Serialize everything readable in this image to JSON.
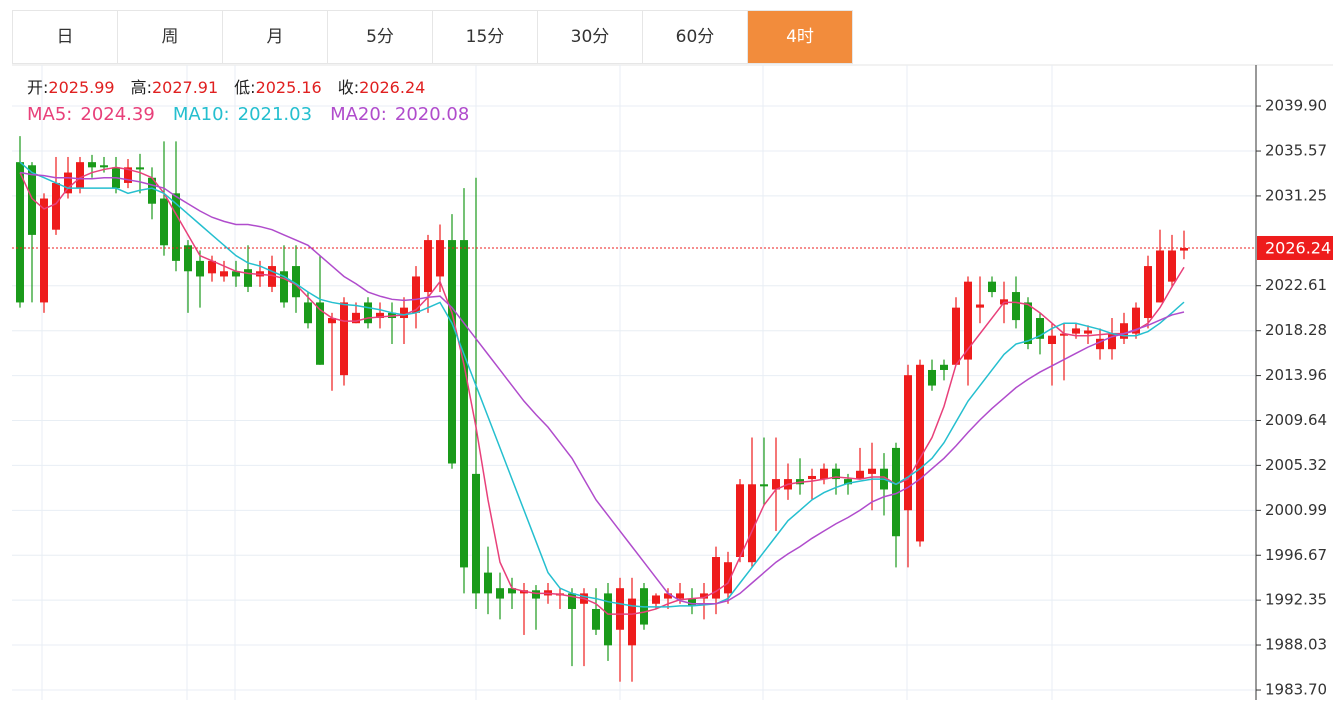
{
  "tabs": {
    "items": [
      "日",
      "周",
      "月",
      "5分",
      "15分",
      "30分",
      "60分",
      "4时"
    ],
    "active": 7
  },
  "header": {
    "open_label": "开:",
    "high_label": "高:",
    "low_label": "低:",
    "close_label": "收:"
  },
  "chart_data": {
    "type": "candlestick",
    "up_color": "#ee1c1c",
    "down_color": "#1a9a1a",
    "ylim": [
      1982.74,
      2043.85
    ],
    "yticks": [
      {
        "value": 2039.9,
        "label": "2039.90"
      },
      2035.57,
      2031.25,
      2022.61,
      2018.28,
      2013.96,
      2009.64,
      2005.32,
      2000.99,
      1996.67,
      1992.35,
      1988.03,
      {
        "value": 1983.7,
        "label": "1983.70"
      }
    ],
    "open": [
      2034.5,
      2034.2,
      2021.0,
      2028.0,
      2031.5,
      2032,
      2034.5,
      2034.2,
      2034,
      2032.5,
      2034,
      2033,
      2031,
      2031.5,
      2026.5,
      2025,
      2023.8,
      2023.5,
      2024,
      2024.2,
      2023.5,
      2022.5,
      2024,
      2024.5,
      2021,
      2021,
      2019,
      2014,
      2019,
      2021,
      2019.5,
      2020,
      2019.5,
      2020,
      2022,
      2023.5,
      2027,
      2027,
      2004.5,
      1995,
      1993.5,
      1993.5,
      1993,
      1993.3,
      1992.8,
      1992.8,
      1993,
      1992,
      1991.5,
      1993,
      1989.5,
      1988,
      1993.5,
      1992,
      1992.5,
      1992.5,
      1992.5,
      1992.5,
      1992.5,
      1993,
      1996.5,
      1996,
      2003.5,
      2003,
      2003,
      2004,
      2004,
      2004,
      2005,
      2004,
      2004,
      2004.5,
      2005,
      2007,
      2001,
      1998,
      2014.5,
      2015,
      2015,
      2015.5,
      2020.5,
      2023,
      2020.8,
      2022,
      2021,
      2019.5,
      2017,
      2017.8,
      2018,
      2018,
      2016.5,
      2016.5,
      2017.5,
      2018,
      2019.5,
      2021,
      2023,
      2025.99
    ],
    "high": [
      2037.0,
      2034.5,
      2031.5,
      2035,
      2035,
      2035,
      2035.2,
      2035,
      2035,
      2034.8,
      2035.3,
      2034,
      2036.5,
      2036.5,
      2027,
      2026,
      2025.5,
      2025,
      2025,
      2026.5,
      2025,
      2025.5,
      2026.5,
      2026.5,
      2022,
      2025.5,
      2020,
      2021.5,
      2021,
      2021.5,
      2021,
      2021,
      2021.5,
      2024.5,
      2027.5,
      2028.5,
      2029.5,
      2032,
      2033,
      1997.5,
      1995,
      1994.5,
      1994,
      1993.8,
      1994,
      1993.5,
      1993.5,
      1993.5,
      1993.5,
      1994,
      1994.5,
      1994.5,
      1994,
      1993,
      1993.5,
      1994,
      1993.5,
      1994,
      1997.5,
      1997,
      2004,
      2008,
      2008,
      2008,
      2005.5,
      2006,
      2005,
      2005.5,
      2005.5,
      2004.5,
      2007,
      2007.5,
      2006.5,
      2007.5,
      2015,
      2015.5,
      2015.5,
      2015.5,
      2021.5,
      2023.5,
      2023.5,
      2023.5,
      2023,
      2023.5,
      2021.5,
      2020,
      2019,
      2019,
      2019,
      2018.8,
      2018.5,
      2019.5,
      2020,
      2021,
      2025.5,
      2028,
      2027.5,
      2027.91
    ],
    "low": [
      2020.5,
      2021,
      2020,
      2027.5,
      2031,
      2031.5,
      2033,
      2033.5,
      2031.5,
      2032,
      2031.5,
      2029,
      2025.5,
      2024,
      2020,
      2020.5,
      2023,
      2023,
      2022.5,
      2022,
      2022.5,
      2022,
      2020.5,
      2020,
      2018.5,
      2015,
      2012.5,
      2013,
      2019,
      2018.5,
      2018.5,
      2017,
      2017,
      2018.5,
      2020,
      2022,
      2005,
      1993,
      1991.5,
      1991,
      1990.5,
      1991.5,
      1989,
      1989.5,
      1992,
      1991.5,
      1986,
      1986,
      1989,
      1986.5,
      1984.5,
      1984.5,
      1989.5,
      1991.5,
      1991.5,
      1992,
      1991,
      1990.5,
      1991,
      1992,
      1996,
      1995.5,
      2001.5,
      1999,
      2002,
      2002.5,
      2002,
      2003.5,
      2002.5,
      2002.5,
      2004,
      2001,
      2000.5,
      1995.5,
      1995.5,
      1997.5,
      2012.5,
      2013.5,
      2015,
      2013,
      2019,
      2021.5,
      2019,
      2018.5,
      2016.5,
      2016,
      2013,
      2013.5,
      2017.5,
      2017,
      2015.5,
      2015.5,
      2017,
      2017.5,
      2018.5,
      2021,
      2022.5,
      2025.16
    ],
    "close": [
      2021.0,
      2027.5,
      2031.0,
      2032.5,
      2033.5,
      2034.5,
      2034,
      2034,
      2032,
      2034,
      2033.8,
      2030.5,
      2026.5,
      2025.0,
      2024.0,
      2023.5,
      2025.0,
      2024,
      2023.5,
      2022.5,
      2024,
      2024.5,
      2021,
      2021.5,
      2019,
      2015,
      2019.5,
      2021,
      2020,
      2019,
      2020,
      2019.5,
      2020.5,
      2023.5,
      2027,
      2027,
      2005.5,
      1995.5,
      1993,
      1993,
      1992.5,
      1993,
      1993.3,
      1992.5,
      1993.3,
      1993,
      1991.5,
      1993,
      1989.5,
      1988,
      1993.5,
      1992.5,
      1990,
      1992.8,
      1993,
      1993,
      1991.8,
      1993,
      1996.5,
      1996,
      2003.5,
      2003.5,
      2003.3,
      2004,
      2004,
      2003.5,
      2004.3,
      2005,
      2004,
      2003.5,
      2004.8,
      2005,
      2003,
      1998.5,
      2014,
      2015,
      2013,
      2014.5,
      2020.5,
      2023,
      2020.8,
      2022,
      2021.3,
      2019.3,
      2017,
      2017.5,
      2017.8,
      2018,
      2018.5,
      2018.3,
      2017.5,
      2018,
      2019,
      2020.5,
      2024.5,
      2026,
      2026,
      2026.24
    ],
    "series": [
      {
        "name": "MA5:",
        "color": "#e8407a",
        "values": [
          2033.5,
          2031,
          2030,
          2030.5,
          2032,
          2033,
          2033.5,
          2033.8,
          2034,
          2033.8,
          2033.5,
          2033,
          2031.5,
          2029.5,
          2027.5,
          2025.5,
          2025,
          2024.5,
          2024,
          2023.8,
          2023.7,
          2023.6,
          2023.3,
          2022.7,
          2021.5,
          2020.3,
          2019.5,
          2019.2,
          2019.2,
          2019.5,
          2019.6,
          2019.7,
          2019.8,
          2020.3,
          2021.5,
          2023,
          2020,
          2015,
          2009,
          2002,
          1996,
          1993.5,
          1993.2,
          1993,
          1993,
          1992.9,
          1992.7,
          1992.5,
          1992,
          1991,
          1991,
          1991,
          1991.2,
          1991.5,
          1992,
          1992.4,
          1992.5,
          1992.6,
          1993.2,
          1994,
          1996.5,
          1999,
          2001.5,
          2003,
          2003.5,
          2003.7,
          2003.8,
          2004,
          2004.2,
          2004.1,
          2004,
          2004.2,
          2004.2,
          2003.5,
          2004,
          2006,
          2008,
          2011,
          2015,
          2016.5,
          2018,
          2019.5,
          2021,
          2021,
          2020.8,
          2020,
          2019,
          2018,
          2017.8,
          2017.8,
          2017.9,
          2018,
          2018,
          2018.3,
          2019,
          2020.5,
          2022.5,
          2024.39
        ]
      },
      {
        "name": "MA10:",
        "color": "#25bfcf",
        "values": [
          2034.5,
          2033.5,
          2033,
          2032.5,
          2032,
          2032,
          2032,
          2032,
          2032,
          2031.5,
          2031.8,
          2032,
          2031.5,
          2030.5,
          2029.5,
          2028.5,
          2027.5,
          2026.5,
          2025.5,
          2024.8,
          2024.5,
          2024,
          2023.5,
          2022.8,
          2022,
          2021.3,
          2021,
          2020.8,
          2020.7,
          2020.5,
          2020.3,
          2020,
          2019.8,
          2020,
          2020.5,
          2021,
          2019,
          2016,
          2013,
          2010,
          2007,
          2004,
          2001,
          1998,
          1995,
          1993.5,
          1993,
          1992.7,
          1992.5,
          1992.2,
          1992,
          1991.8,
          1991.7,
          1991.7,
          1991.7,
          1991.8,
          1991.8,
          1991.9,
          1992,
          1992.5,
          1994,
          1995.5,
          1997,
          1998.5,
          2000,
          2001,
          2002,
          2002.7,
          2003.2,
          2003.6,
          2003.8,
          2004,
          2004,
          2003.5,
          2004.2,
          2005,
          2006,
          2007.5,
          2009.5,
          2011.5,
          2013,
          2014.5,
          2016,
          2017,
          2017.3,
          2017.8,
          2018.5,
          2019,
          2019,
          2018.7,
          2018.4,
          2018,
          2017.8,
          2017.8,
          2018.2,
          2019,
          2020,
          2021.03
        ]
      },
      {
        "name": "MA20:",
        "color": "#b04ccc",
        "values": [
          2033.5,
          2033.3,
          2033.2,
          2033,
          2033,
          2032.9,
          2032.9,
          2033,
          2033,
          2032.8,
          2032.6,
          2032.3,
          2032,
          2031.2,
          2030.5,
          2029.8,
          2029.2,
          2028.8,
          2028.5,
          2028.5,
          2028.3,
          2028,
          2027.5,
          2027,
          2026.5,
          2025.5,
          2024.5,
          2023.5,
          2022.8,
          2022,
          2021.6,
          2021.3,
          2021.2,
          2021.3,
          2021.5,
          2021.6,
          2020.5,
          2019,
          2017.5,
          2016,
          2014.5,
          2013,
          2011.5,
          2010.2,
          2009,
          2007.5,
          2006,
          2004,
          2002,
          2000.5,
          1999,
          1997.5,
          1996,
          1994.5,
          1993,
          1992.3,
          1992,
          1992,
          1992,
          1992.3,
          1993,
          1994,
          1995,
          1996,
          1996.8,
          1997.5,
          1998.3,
          1999,
          1999.7,
          2000.3,
          2001,
          2001.8,
          2002.3,
          2002.6,
          2003.2,
          2004,
          2005,
          2006,
          2007.2,
          2008.5,
          2009.7,
          2010.8,
          2011.8,
          2012.8,
          2013.6,
          2014.3,
          2014.9,
          2015.5,
          2016.1,
          2016.7,
          2017.2,
          2017.7,
          2018,
          2018.4,
          2018.8,
          2019.3,
          2019.8,
          2020.08
        ]
      }
    ]
  }
}
